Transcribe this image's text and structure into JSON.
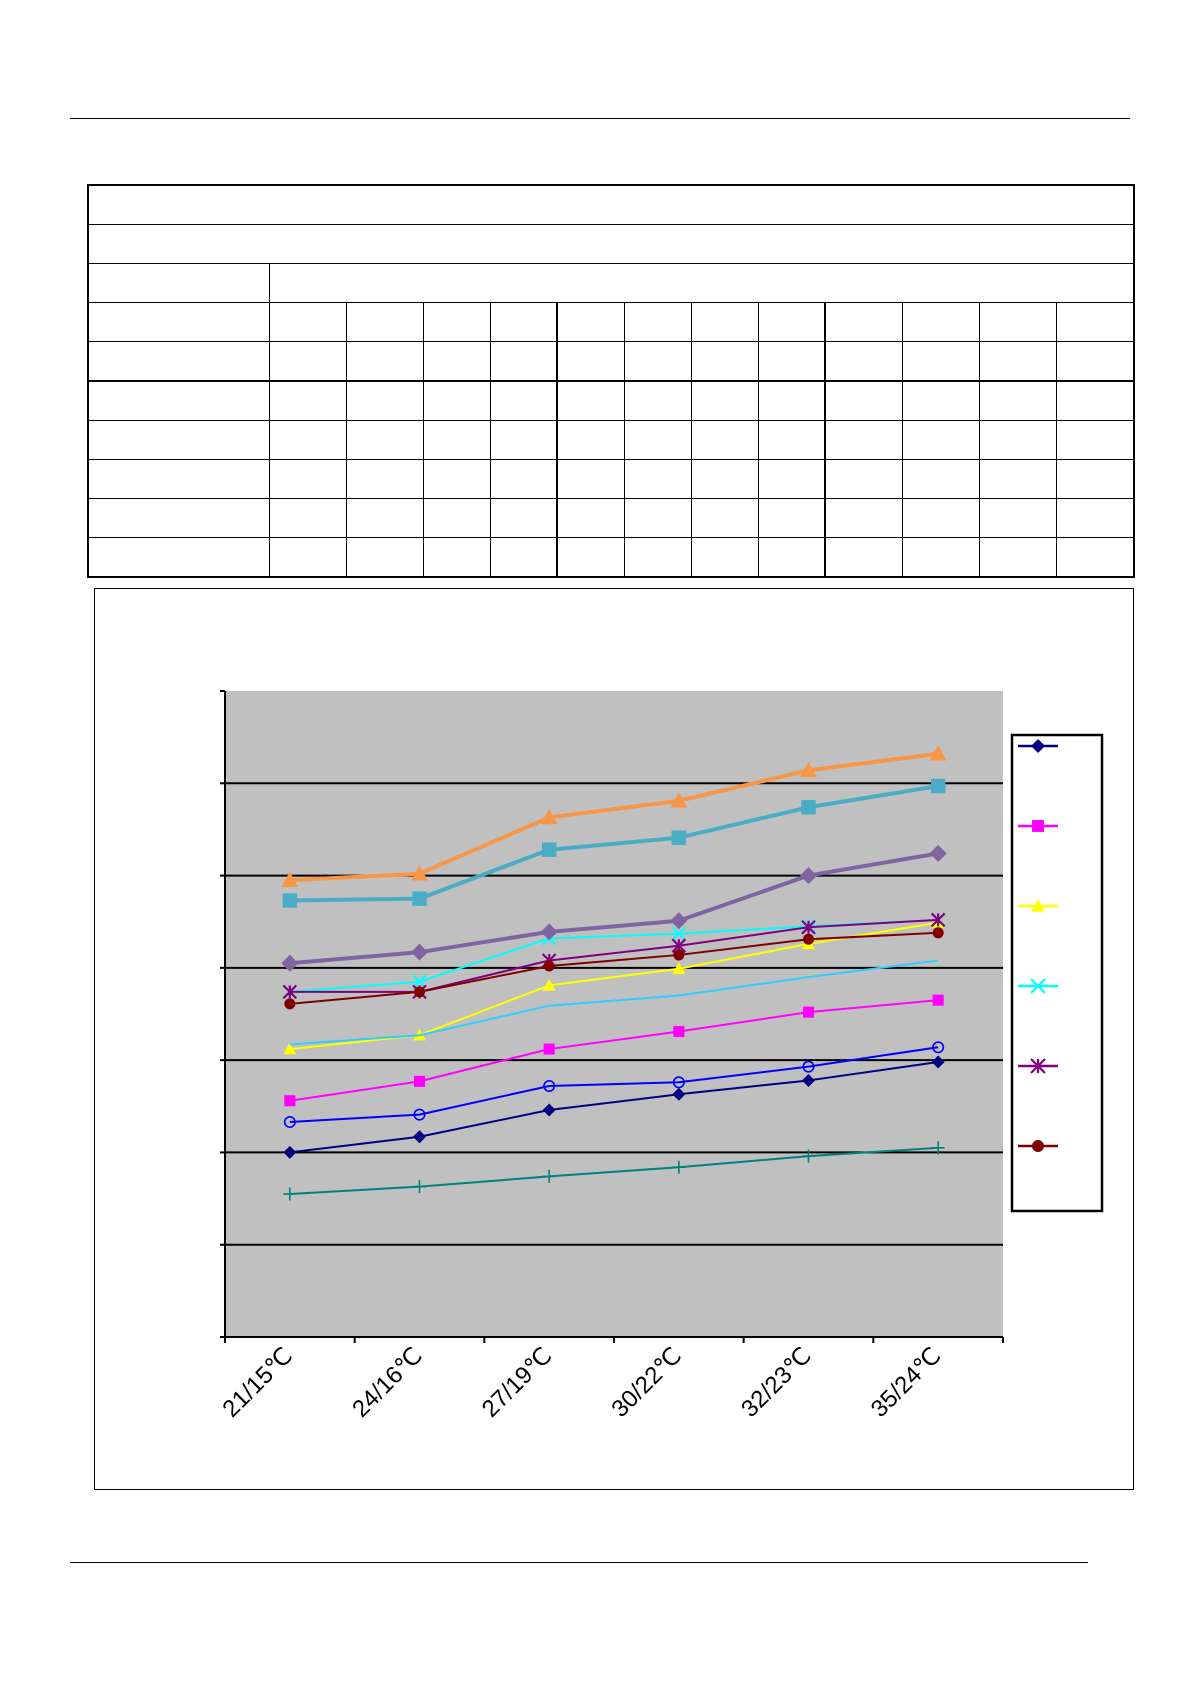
{
  "chart_data": {
    "type": "line",
    "categories": [
      "21/15℃",
      "24/16℃",
      "27/19℃",
      "30/22℃",
      "32/23℃",
      "35/24℃"
    ],
    "ylim": [
      0,
      7
    ],
    "grid": true,
    "legend_position": "right",
    "plot_background": "#c0c0c0",
    "series": [
      {
        "marker": "diamond",
        "color": "#000080",
        "width": 2,
        "values": [
          2.0,
          2.17,
          2.46,
          2.63,
          2.78,
          2.98
        ]
      },
      {
        "marker": "square",
        "color": "#ff00ff",
        "width": 2,
        "values": [
          2.56,
          2.77,
          3.12,
          3.31,
          3.52,
          3.65
        ]
      },
      {
        "marker": "triangle",
        "color": "#ffff00",
        "width": 2,
        "values": [
          3.12,
          3.27,
          3.81,
          3.99,
          4.26,
          4.49
        ]
      },
      {
        "marker": "x",
        "color": "#00ffff",
        "width": 2,
        "values": [
          3.74,
          3.85,
          4.32,
          4.37,
          4.45,
          4.52
        ]
      },
      {
        "marker": "star",
        "color": "#800080",
        "width": 2,
        "values": [
          3.74,
          3.74,
          4.08,
          4.24,
          4.44,
          4.52
        ]
      },
      {
        "marker": "circle",
        "color": "#800000",
        "width": 2,
        "values": [
          3.61,
          3.74,
          4.02,
          4.14,
          4.31,
          4.38
        ]
      },
      {
        "marker": "plus",
        "color": "#008080",
        "width": 2,
        "values": [
          1.55,
          1.63,
          1.74,
          1.84,
          1.96,
          2.05
        ]
      },
      {
        "marker": "square",
        "color": "#4bacc6",
        "width": 4,
        "values": [
          4.73,
          4.75,
          5.28,
          5.41,
          5.74,
          5.97
        ]
      },
      {
        "marker": "triangle",
        "color": "#f79646",
        "width": 4,
        "values": [
          4.95,
          5.02,
          5.63,
          5.81,
          6.14,
          6.32
        ]
      },
      {
        "marker": "diamond",
        "color": "#8064a2",
        "width": 4,
        "values": [
          4.05,
          4.17,
          4.39,
          4.51,
          5.0,
          5.24
        ]
      },
      {
        "marker": "circle-open",
        "color": "#0000ff",
        "width": 2,
        "values": [
          2.33,
          2.41,
          2.72,
          2.76,
          2.93,
          3.14
        ]
      },
      {
        "marker": "none",
        "color": "#33ccff",
        "width": 2,
        "values": [
          3.17,
          3.27,
          3.59,
          3.7,
          3.9,
          4.08
        ]
      }
    ],
    "legend_markers": [
      {
        "marker": "diamond",
        "color": "#000080"
      },
      {
        "marker": "square",
        "color": "#ff00ff"
      },
      {
        "marker": "triangle",
        "color": "#ffff00"
      },
      {
        "marker": "x",
        "color": "#00ffff"
      },
      {
        "marker": "star",
        "color": "#800080"
      },
      {
        "marker": "circle",
        "color": "#800000"
      }
    ]
  }
}
